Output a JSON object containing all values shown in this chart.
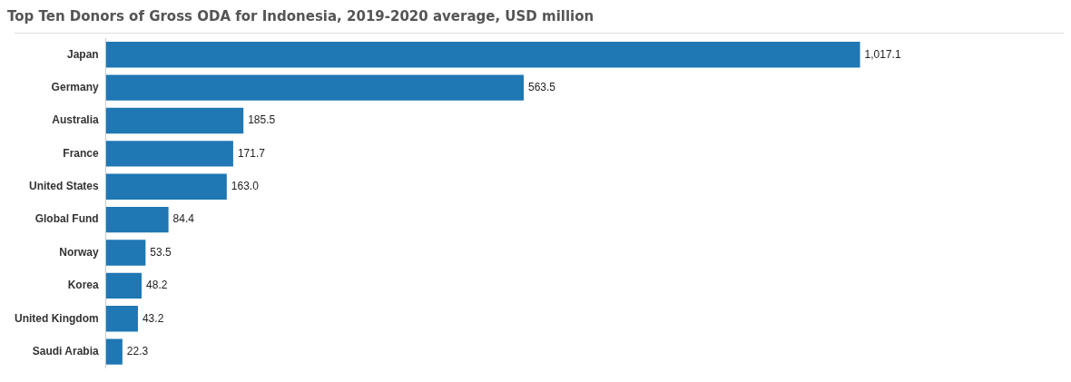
{
  "chart_data": {
    "type": "bar",
    "orientation": "horizontal",
    "title": "Top Ten Donors of Gross ODA for Indonesia, 2019-2020 average, USD million",
    "categories": [
      "Japan",
      "Germany",
      "Australia",
      "France",
      "United States",
      "Global Fund",
      "Norway",
      "Korea",
      "United Kingdom",
      "Saudi Arabia"
    ],
    "values": [
      1017.1,
      563.5,
      185.5,
      171.7,
      163.0,
      84.4,
      53.5,
      48.2,
      43.2,
      22.3
    ],
    "value_labels": [
      "1,017.1",
      "563.5",
      "185.5",
      "171.7",
      "163.0",
      "84.4",
      "53.5",
      "48.2",
      "43.2",
      "22.3"
    ],
    "color": "#1f77b4"
  }
}
